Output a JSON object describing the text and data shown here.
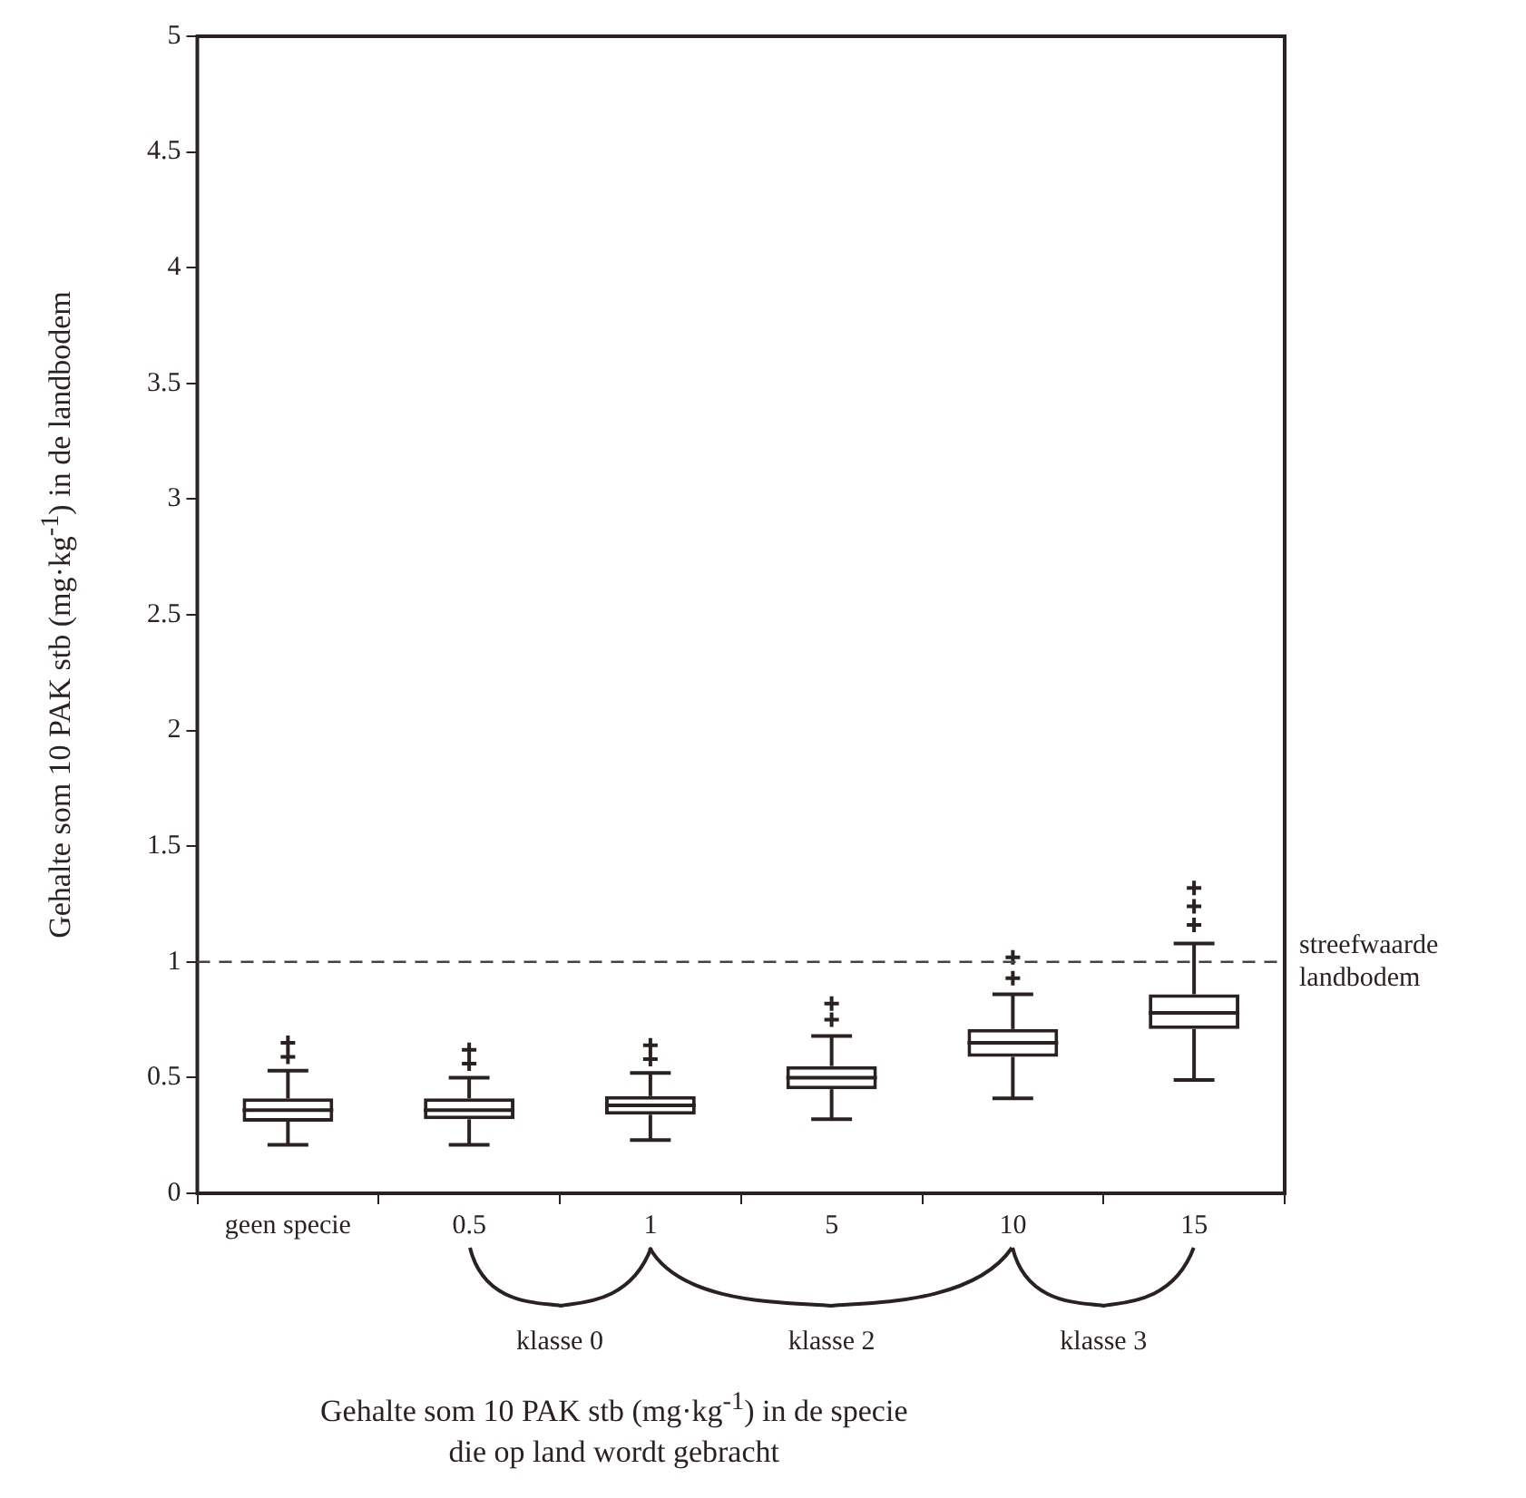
{
  "chart_data": {
    "type": "box",
    "xlabel": "Gehalte som 10 PAK stb (mg·kg$^{-1}$) in de specie die op land wordt gebracht",
    "ylabel": "Gehalte som 10 PAK stb (mg·kg$^{-1}$) in de landbodem",
    "categories": [
      "geen specie",
      "0.5",
      "1",
      "5",
      "10",
      "15"
    ],
    "color": "#2a2220",
    "boxes": [
      {
        "low": 0.21,
        "q1": 0.31,
        "median": 0.36,
        "q3": 0.41,
        "high": 0.53,
        "outliers": [
          0.59,
          0.65
        ]
      },
      {
        "low": 0.21,
        "q1": 0.32,
        "median": 0.36,
        "q3": 0.41,
        "high": 0.5,
        "outliers": [
          0.56,
          0.62
        ]
      },
      {
        "low": 0.23,
        "q1": 0.34,
        "median": 0.38,
        "q3": 0.42,
        "high": 0.52,
        "outliers": [
          0.58,
          0.64
        ]
      },
      {
        "low": 0.32,
        "q1": 0.45,
        "median": 0.5,
        "q3": 0.55,
        "high": 0.68,
        "outliers": [
          0.75,
          0.82
        ]
      },
      {
        "low": 0.41,
        "q1": 0.59,
        "median": 0.65,
        "q3": 0.71,
        "high": 0.86,
        "outliers": [
          0.93,
          1.02
        ]
      },
      {
        "low": 0.49,
        "q1": 0.71,
        "median": 0.78,
        "q3": 0.86,
        "high": 1.08,
        "outliers": [
          1.16,
          1.24,
          1.32
        ]
      }
    ],
    "ylim": [
      0,
      5
    ],
    "yticks": [
      0,
      0.5,
      1,
      1.5,
      2,
      2.5,
      3,
      3.5,
      4,
      4.5,
      5
    ],
    "ref_lines": [
      {
        "axis": "y",
        "value": 1,
        "label": "streefwaarde landbodem",
        "line_style": "dashed",
        "color": "#444444"
      }
    ],
    "annotations": [
      "klasse 0",
      "klasse 2",
      "klasse 3"
    ],
    "marker": "cross"
  }
}
